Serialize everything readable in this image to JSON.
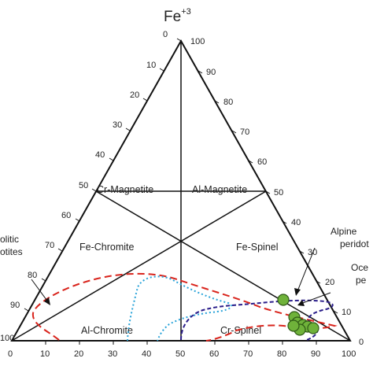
{
  "apex": {
    "label": "Fe",
    "superscript": "+3"
  },
  "left_axis_ticks": [
    "0",
    "10",
    "20",
    "30",
    "40",
    "50",
    "60",
    "70",
    "80",
    "90",
    "100"
  ],
  "right_axis_ticks": [
    "100",
    "90",
    "80",
    "70",
    "60",
    "50",
    "40",
    "30",
    "20",
    "10",
    "0"
  ],
  "bottom_axis_ticks": [
    "0",
    "10",
    "20",
    "30",
    "40",
    "50",
    "60",
    "70",
    "80",
    "90",
    "100"
  ],
  "fields": {
    "cr_magnetite": "Cr-Magnetite",
    "al_magnetite": "Al-Magnetite",
    "fe_chromite": "Fe-Chromite",
    "fe_spinel": "Fe-Spinel",
    "al_chromite": "Al-Chromite",
    "cr_spinel": "Cr-Spinel"
  },
  "annotations": {
    "left_note_line1": "olitic",
    "left_note_line2": "otites",
    "right_note_1_line1": "Alpine",
    "right_note_1_line2": "peridot",
    "right_note_2_line1": "Oce",
    "right_note_2_line2": "pe"
  },
  "colors": {
    "outline": "#111111",
    "red_field": "#d9241c",
    "cyan_field": "#29a3d9",
    "purple_field": "#2a1d8a",
    "sample_fill": "#6fb23a",
    "sample_stroke": "#2f5a16"
  }
}
